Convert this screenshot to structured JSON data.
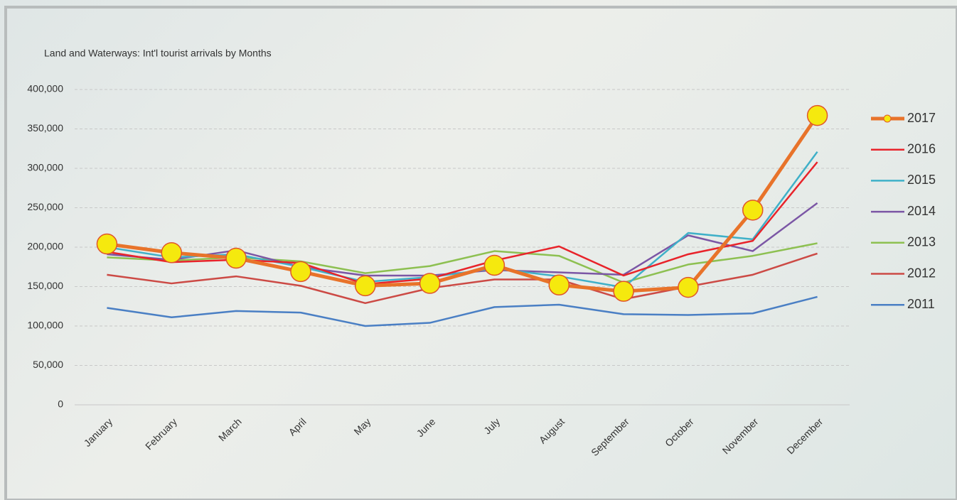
{
  "chart_data": {
    "type": "line",
    "title": "Land and Waterways: Int'l tourist arrivals by Months",
    "categories": [
      "January",
      "February",
      "March",
      "April",
      "May",
      "June",
      "July",
      "August",
      "September",
      "October",
      "November",
      "December"
    ],
    "series": [
      {
        "name": "2017",
        "color": "#e8732a",
        "marker": true,
        "values": [
          204000,
          193000,
          186000,
          169000,
          151000,
          154000,
          177000,
          152000,
          144000,
          149000,
          247000,
          367000
        ]
      },
      {
        "name": "2016",
        "color": "#e8232a",
        "values": [
          194000,
          181000,
          184000,
          180000,
          153000,
          160000,
          183000,
          201000,
          164000,
          191000,
          208000,
          308000
        ]
      },
      {
        "name": "2015",
        "color": "#3fb0c8",
        "values": [
          200000,
          187000,
          191000,
          175000,
          156000,
          162000,
          173000,
          163000,
          149000,
          218000,
          210000,
          321000
        ]
      },
      {
        "name": "2014",
        "color": "#7b56a5",
        "values": [
          191000,
          184000,
          196000,
          175000,
          164000,
          164000,
          171000,
          168000,
          165000,
          215000,
          195000,
          256000
        ]
      },
      {
        "name": "2013",
        "color": "#8dc051",
        "values": [
          187000,
          183000,
          187000,
          182000,
          167000,
          176000,
          195000,
          189000,
          155000,
          178000,
          189000,
          205000
        ]
      },
      {
        "name": "2012",
        "color": "#cc4a45",
        "values": [
          165000,
          154000,
          163000,
          151000,
          129000,
          148000,
          159000,
          159000,
          134000,
          150000,
          165000,
          192000
        ]
      },
      {
        "name": "2011",
        "color": "#4a7fc4",
        "values": [
          123000,
          111000,
          119000,
          117000,
          100000,
          104000,
          124000,
          127000,
          115000,
          114000,
          116000,
          137000
        ]
      }
    ],
    "ylim": [
      0,
      400000
    ],
    "yticks": [
      0,
      {
        "value": 50000,
        "label": "50,000"
      },
      {
        "value": 100000,
        "label": "100,000"
      },
      {
        "value": 150000,
        "label": "150,000"
      },
      {
        "value": 200000,
        "label": "200,000"
      },
      {
        "value": 250000,
        "label": "250,000"
      },
      {
        "value": 300000,
        "label": "300,000"
      },
      {
        "value": 350000,
        "label": "350,000"
      },
      {
        "value": 400000,
        "label": "400,000"
      }
    ],
    "grid": true,
    "legend": "right"
  }
}
